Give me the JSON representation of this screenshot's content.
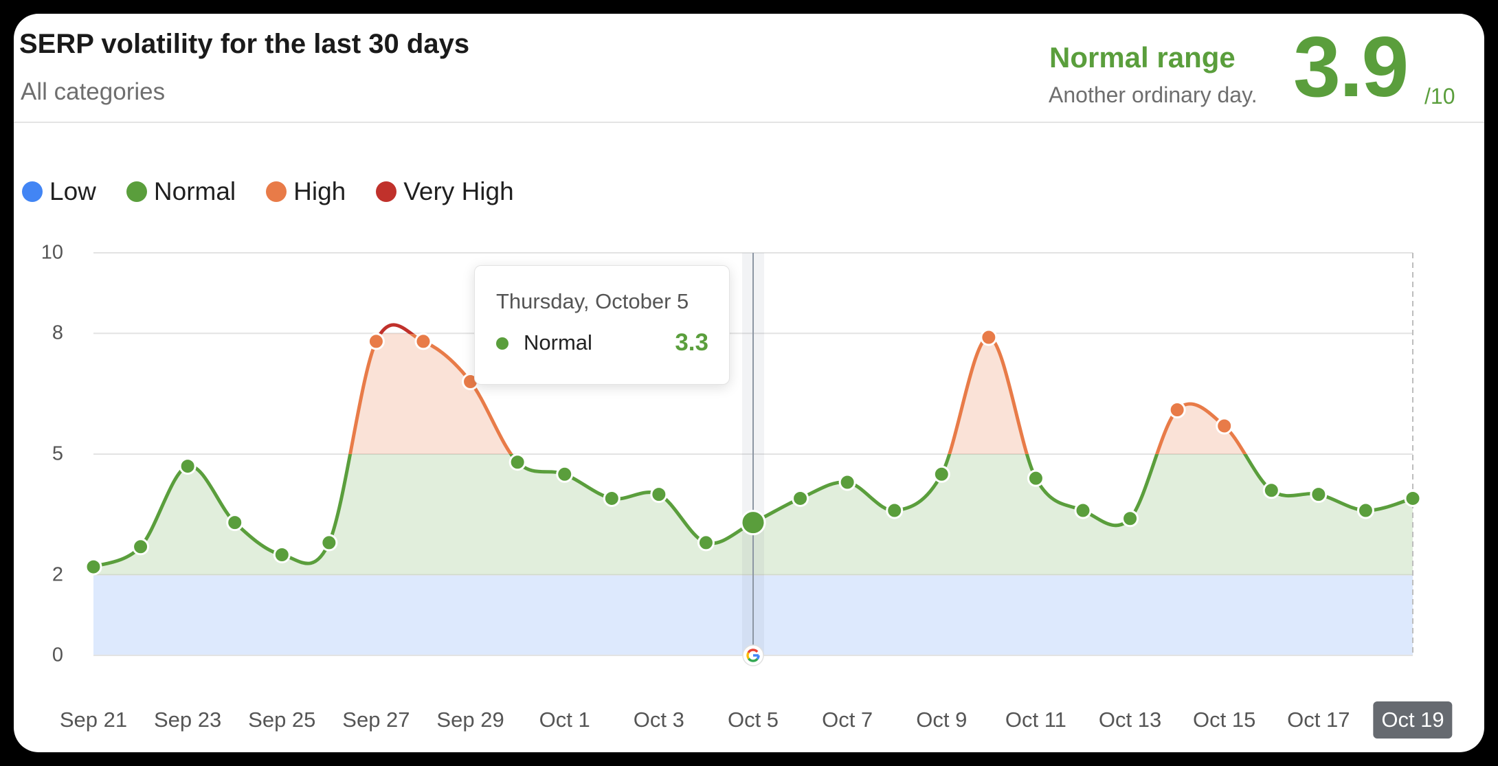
{
  "header": {
    "title": "SERP volatility for the last 30 days",
    "subtitle": "All categories",
    "range_label": "Normal range",
    "range_sub": "Another ordinary day.",
    "score": "3.9",
    "score_den": "/10"
  },
  "legend": [
    {
      "label": "Low",
      "color": "#4285f4"
    },
    {
      "label": "Normal",
      "color": "#5a9e3c"
    },
    {
      "label": "High",
      "color": "#e87b48"
    },
    {
      "label": "Very High",
      "color": "#c0312b"
    }
  ],
  "tooltip": {
    "date": "Thursday, October 5",
    "label": "Normal",
    "value": "3.3",
    "color": "#5a9e3c"
  },
  "selected_label": "Oct 19",
  "google_marker_icon": "google-g-icon",
  "chart_data": {
    "type": "area",
    "title": "SERP volatility for the last 30 days",
    "x": [
      "Sep 21",
      "Sep 22",
      "Sep 23",
      "Sep 24",
      "Sep 25",
      "Sep 26",
      "Sep 27",
      "Sep 28",
      "Sep 29",
      "Sep 30",
      "Oct 1",
      "Oct 2",
      "Oct 3",
      "Oct 4",
      "Oct 5",
      "Oct 6",
      "Oct 7",
      "Oct 8",
      "Oct 9",
      "Oct 10",
      "Oct 11",
      "Oct 12",
      "Oct 13",
      "Oct 14",
      "Oct 15",
      "Oct 16",
      "Oct 17",
      "Oct 18",
      "Oct 19"
    ],
    "values": [
      2.2,
      2.7,
      4.7,
      3.3,
      2.5,
      2.8,
      7.8,
      7.8,
      6.8,
      4.8,
      4.5,
      3.9,
      4.0,
      2.8,
      3.3,
      3.9,
      4.3,
      3.6,
      4.5,
      7.9,
      4.4,
      3.6,
      3.4,
      6.1,
      5.7,
      4.1,
      4.0,
      3.6,
      3.9
    ],
    "x_tick_labels": [
      "Sep 21",
      "Sep 23",
      "Sep 25",
      "Sep 27",
      "Sep 29",
      "Oct 1",
      "Oct 3",
      "Oct 5",
      "Oct 7",
      "Oct 9",
      "Oct 11",
      "Oct 13",
      "Oct 15",
      "Oct 17",
      "Oct 19"
    ],
    "y_ticks": [
      0,
      2,
      5,
      8,
      10
    ],
    "ylim": [
      0,
      10
    ],
    "bands": [
      {
        "name": "Low",
        "from": 0,
        "to": 2,
        "color": "#4285f4"
      },
      {
        "name": "Normal",
        "from": 2,
        "to": 5,
        "color": "#5a9e3c"
      },
      {
        "name": "High",
        "from": 5,
        "to": 8,
        "color": "#e87b48"
      },
      {
        "name": "Very High",
        "from": 8,
        "to": 10,
        "color": "#c0312b"
      }
    ],
    "highlighted_point": "Oct 5",
    "grid": true,
    "legend_position": "top-left"
  }
}
